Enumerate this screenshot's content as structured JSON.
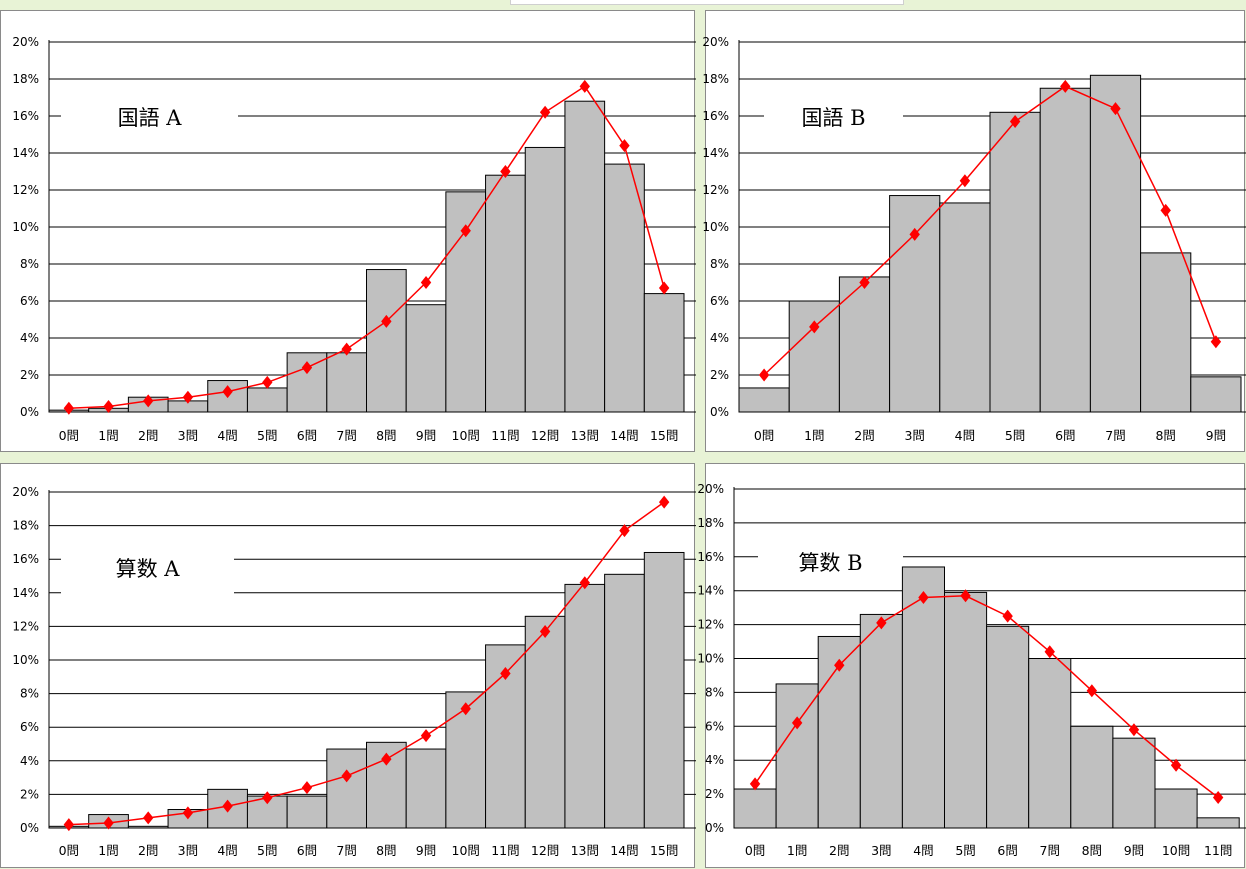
{
  "chart_data": [
    {
      "type": "bar",
      "title": "国語 A",
      "categories": [
        "0問",
        "1問",
        "2問",
        "3問",
        "4問",
        "5問",
        "6問",
        "7問",
        "8問",
        "9問",
        "10問",
        "11問",
        "12問",
        "13問",
        "14問",
        "15問"
      ],
      "values": [
        0.1,
        0.2,
        0.8,
        0.6,
        1.7,
        1.3,
        3.2,
        3.2,
        7.7,
        5.8,
        11.9,
        12.8,
        14.3,
        16.8,
        13.4,
        6.4
      ],
      "line_values": [
        0.2,
        0.3,
        0.6,
        0.8,
        1.1,
        1.6,
        2.4,
        3.4,
        4.9,
        7.0,
        9.8,
        13.0,
        16.2,
        17.6,
        14.4,
        6.7
      ],
      "yticks": [
        "0%",
        "2%",
        "4%",
        "6%",
        "8%",
        "10%",
        "12%",
        "14%",
        "16%",
        "18%",
        "20%"
      ],
      "ylim": [
        0,
        20
      ],
      "bar_color": "#c0c0c0",
      "line_color": "#ff0000"
    },
    {
      "type": "bar",
      "title": "国語 B",
      "categories": [
        "0問",
        "1問",
        "2問",
        "3問",
        "4問",
        "5問",
        "6問",
        "7問",
        "8問",
        "9問"
      ],
      "values": [
        1.3,
        6.0,
        7.3,
        11.7,
        11.3,
        16.2,
        17.5,
        18.2,
        8.6,
        1.9
      ],
      "line_values": [
        2.0,
        4.6,
        7.0,
        9.6,
        12.5,
        15.7,
        17.6,
        16.4,
        10.9,
        3.8
      ],
      "yticks": [
        "0%",
        "2%",
        "4%",
        "6%",
        "8%",
        "10%",
        "12%",
        "14%",
        "16%",
        "18%",
        "20%"
      ],
      "ylim": [
        0,
        20
      ],
      "bar_color": "#c0c0c0",
      "line_color": "#ff0000"
    },
    {
      "type": "bar",
      "title": "算数 A",
      "categories": [
        "0問",
        "1問",
        "2問",
        "3問",
        "4問",
        "5問",
        "6問",
        "7問",
        "8問",
        "9問",
        "10問",
        "11問",
        "12問",
        "13問",
        "14問",
        "15問"
      ],
      "values": [
        0.1,
        0.8,
        0.1,
        1.1,
        2.3,
        1.9,
        1.9,
        4.7,
        5.1,
        4.7,
        8.1,
        10.9,
        12.6,
        14.5,
        15.1,
        16.4
      ],
      "line_values": [
        0.2,
        0.3,
        0.6,
        0.9,
        1.3,
        1.8,
        2.4,
        3.1,
        4.1,
        5.5,
        7.1,
        9.2,
        11.7,
        14.6,
        17.7,
        19.4
      ],
      "yticks": [
        "0%",
        "2%",
        "4%",
        "6%",
        "8%",
        "10%",
        "12%",
        "14%",
        "16%",
        "18%",
        "20%"
      ],
      "ylim": [
        0,
        20
      ],
      "bar_color": "#c0c0c0",
      "line_color": "#ff0000"
    },
    {
      "type": "bar",
      "title": "算数 B",
      "categories": [
        "0問",
        "1問",
        "2問",
        "3問",
        "4問",
        "5問",
        "6問",
        "7問",
        "8問",
        "9問",
        "10問",
        "11問"
      ],
      "values": [
        2.3,
        8.5,
        11.3,
        12.6,
        15.4,
        13.9,
        11.9,
        10.0,
        6.0,
        5.3,
        2.3,
        0.6
      ],
      "line_values": [
        2.6,
        6.2,
        9.6,
        12.1,
        13.6,
        13.7,
        12.5,
        10.4,
        8.1,
        5.8,
        3.7,
        1.8
      ],
      "yticks": [
        "0%",
        "2%",
        "4%",
        "6%",
        "8%",
        "10%",
        "12%",
        "14%",
        "16%",
        "18%",
        "20%"
      ],
      "ylim": [
        0,
        20
      ],
      "bar_color": "#c0c0c0",
      "line_color": "#ff0000"
    }
  ]
}
